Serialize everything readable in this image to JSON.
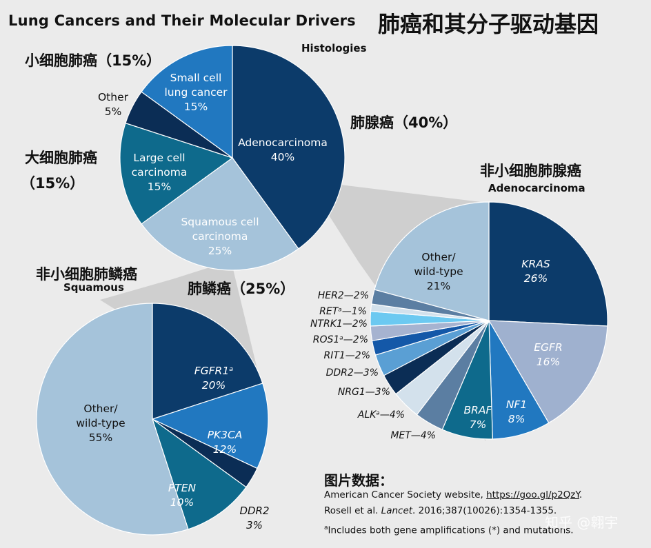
{
  "header": {
    "title_en": "Lung Cancers and Their Molecular Drivers",
    "title_cn": "肺癌和其分子驱动基因"
  },
  "histology_labels": {
    "heading": "Histologies",
    "small_cell_cn": "小细胞肺癌（15%）",
    "large_cell_cn_line1": "大细胞肺癌",
    "large_cell_cn_line2": "（15%）",
    "adeno_cn": "肺腺癌（40%）",
    "squamous_cn": "肺鳞癌（25%）"
  },
  "adeno_labels": {
    "cn": "非小细胞肺腺癌",
    "en": "Adenocarcinoma"
  },
  "squamous_labels": {
    "cn": "非小细胞肺鳞癌",
    "en": "Squamous"
  },
  "source": {
    "heading": "图片数据：",
    "line1_prefix": "American Cancer Society website, ",
    "line1_link": "https://goo.gl/p2QzY",
    "line1_suffix": ".",
    "line2_authors": "Rosell et al. ",
    "line2_journal": "Lancet",
    "line2_rest": ". 2016;387(10026):1354-1355.",
    "footnote_mark": "a",
    "footnote": "Includes both gene amplifications (*) and mutations.",
    "watermark": "知乎 @翱宇"
  },
  "colors": {
    "dark_navy": "#0c3b6a",
    "navy": "#0e3868",
    "blue": "#2178c0",
    "teal": "#0e6a8c",
    "light_blue": "#a5c3da",
    "periwinkle": "#9fb1cf",
    "slate": "#5b7ea2",
    "pale": "#d3e1ec",
    "cyan": "#6cc9f1"
  },
  "chart_data": [
    {
      "type": "pie",
      "title": "Histologies",
      "series": [
        {
          "name": "Adenocarcinoma",
          "value": 40,
          "label": "40%",
          "color": "#0c3b6a"
        },
        {
          "name": "Squamous cell carcinoma",
          "value": 25,
          "label": "25%",
          "color": "#a5c3da"
        },
        {
          "name": "Large cell carcinoma",
          "value": 15,
          "label": "15%",
          "color": "#0e6a8c"
        },
        {
          "name": "Other",
          "value": 5,
          "label": "5%",
          "color": "#0b2d55"
        },
        {
          "name": "Small cell lung cancer",
          "value": 15,
          "label": "15%",
          "color": "#2178c0"
        }
      ]
    },
    {
      "type": "pie",
      "title": "Adenocarcinoma",
      "series": [
        {
          "name": "KRAS",
          "value": 26,
          "label": "26%",
          "color": "#0c3b6a"
        },
        {
          "name": "EGFR",
          "value": 16,
          "label": "16%",
          "color": "#9fb1cf"
        },
        {
          "name": "NF1",
          "value": 8,
          "label": "8%",
          "color": "#2178c0"
        },
        {
          "name": "BRAF",
          "value": 7,
          "label": "7%",
          "color": "#0e6a8c"
        },
        {
          "name": "MET",
          "value": 4,
          "label": "MET—4%",
          "color": "#5b7ea2"
        },
        {
          "name": "ALK",
          "value": 4,
          "label": "ALKᵃ—4%",
          "color": "#d3e1ec"
        },
        {
          "name": "NRG1",
          "value": 3,
          "label": "NRG1—3%",
          "color": "#0b2d55"
        },
        {
          "name": "DDR2",
          "value": 3,
          "label": "DDR2—3%",
          "color": "#5a9fd4"
        },
        {
          "name": "RIT1",
          "value": 2,
          "label": "RIT1—2%",
          "color": "#1458a8"
        },
        {
          "name": "ROS1",
          "value": 2,
          "label": "ROS1ᵃ—2%",
          "color": "#a6b3d0"
        },
        {
          "name": "NTRK1",
          "value": 2,
          "label": "NTRK1—2%",
          "color": "#6cc9f1"
        },
        {
          "name": "RET",
          "value": 1,
          "label": "RETᵃ—1%",
          "color": "#d3e1ec"
        },
        {
          "name": "HER2",
          "value": 2,
          "label": "HER2—2%",
          "color": "#5b7ea2"
        },
        {
          "name": "Other/wild-type",
          "value": 21,
          "label": "21%",
          "color": "#a5c3da"
        }
      ]
    },
    {
      "type": "pie",
      "title": "Squamous",
      "series": [
        {
          "name": "FGFR1",
          "value": 20,
          "label": "20%",
          "color": "#0c3b6a"
        },
        {
          "name": "PK3CA",
          "value": 12,
          "label": "12%",
          "color": "#2178c0"
        },
        {
          "name": "DDR2",
          "value": 3,
          "label": "3%",
          "color": "#0b2d55"
        },
        {
          "name": "PTEN",
          "value": 10,
          "label": "10%",
          "color": "#0e6a8c"
        },
        {
          "name": "Other/wild-type",
          "value": 55,
          "label": "55%",
          "color": "#a5c3da"
        }
      ]
    }
  ]
}
